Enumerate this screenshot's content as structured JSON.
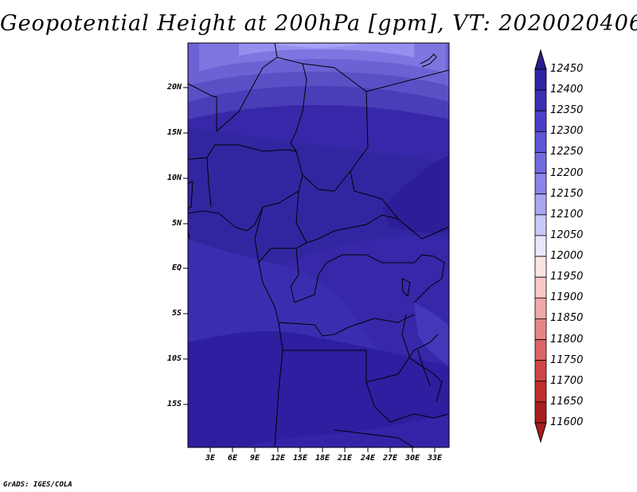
{
  "title": "Geopotential Height at 200hPa [gpm], VT: 2020020406",
  "credit": "GrADS: IGES/COLA",
  "map": {
    "lat_labels": [
      "20N",
      "15N",
      "10N",
      "5N",
      "EQ",
      "5S",
      "10S",
      "15S"
    ],
    "lon_labels": [
      "3E",
      "6E",
      "9E",
      "12E",
      "15E",
      "18E",
      "21E",
      "24E",
      "27E",
      "30E",
      "33E"
    ]
  },
  "colorbar": {
    "levels": [
      "12450",
      "12400",
      "12350",
      "12300",
      "12250",
      "12200",
      "12150",
      "12100",
      "12050",
      "12000",
      "11950",
      "11900",
      "11850",
      "11800",
      "11750",
      "11700",
      "11650",
      "11600"
    ],
    "colors": [
      "#2a1e8e",
      "#2f24a2",
      "#3a30b4",
      "#4a40c8",
      "#5c55d8",
      "#706ae2",
      "#8a84ec",
      "#aaa6f2",
      "#cac8f8",
      "#e8e8fc",
      "#fce4e4",
      "#f8c8c8",
      "#f0a8a8",
      "#e68686",
      "#dc6464",
      "#d04646",
      "#c02e2e",
      "#a81e1e"
    ]
  },
  "colors": {
    "map_base": "#3a2ea4",
    "land_border": "#000000"
  }
}
